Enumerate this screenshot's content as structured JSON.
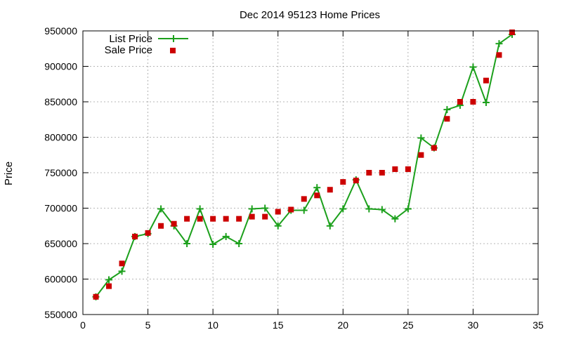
{
  "chart_data": {
    "type": "line",
    "title": "Dec 2014 95123 Home Prices",
    "xlabel": "",
    "ylabel": "Price",
    "xlim": [
      0,
      35
    ],
    "ylim": [
      550000,
      950000
    ],
    "x_ticks": [
      0,
      5,
      10,
      15,
      20,
      25,
      30,
      35
    ],
    "y_ticks": [
      550000,
      600000,
      650000,
      700000,
      750000,
      800000,
      850000,
      900000,
      950000
    ],
    "grid": true,
    "legend_position": "top-left",
    "series": [
      {
        "name": "List Price",
        "style": "line-with-plus-markers",
        "color": "#1ca01c",
        "x": [
          1,
          2,
          3,
          4,
          5,
          6,
          7,
          8,
          9,
          10,
          11,
          12,
          13,
          14,
          15,
          16,
          17,
          18,
          19,
          20,
          21,
          22,
          23,
          24,
          25,
          26,
          27,
          28,
          29,
          30,
          31,
          32,
          33
        ],
        "values": [
          575000,
          599000,
          611000,
          660000,
          664000,
          699000,
          675000,
          650000,
          699000,
          649000,
          660000,
          650000,
          699000,
          700000,
          675000,
          697000,
          697000,
          729000,
          675000,
          699000,
          740000,
          699000,
          698000,
          685000,
          699000,
          799000,
          785000,
          839000,
          845000,
          899000,
          849000,
          932000,
          945000
        ]
      },
      {
        "name": "Sale Price",
        "style": "square-markers",
        "color": "#cc0000",
        "x": [
          1,
          2,
          3,
          4,
          5,
          6,
          7,
          8,
          9,
          10,
          11,
          12,
          13,
          14,
          15,
          16,
          17,
          18,
          19,
          20,
          21,
          22,
          23,
          24,
          25,
          26,
          27,
          28,
          29,
          30,
          31,
          32,
          33
        ],
        "values": [
          575000,
          590000,
          622000,
          660000,
          665000,
          675000,
          678000,
          685000,
          685000,
          685000,
          685000,
          685000,
          688000,
          688000,
          695000,
          698000,
          713000,
          718000,
          726000,
          737000,
          739000,
          750000,
          750000,
          755000,
          755000,
          775000,
          785000,
          826000,
          850000,
          850000,
          880000,
          916000,
          948000
        ]
      }
    ]
  }
}
